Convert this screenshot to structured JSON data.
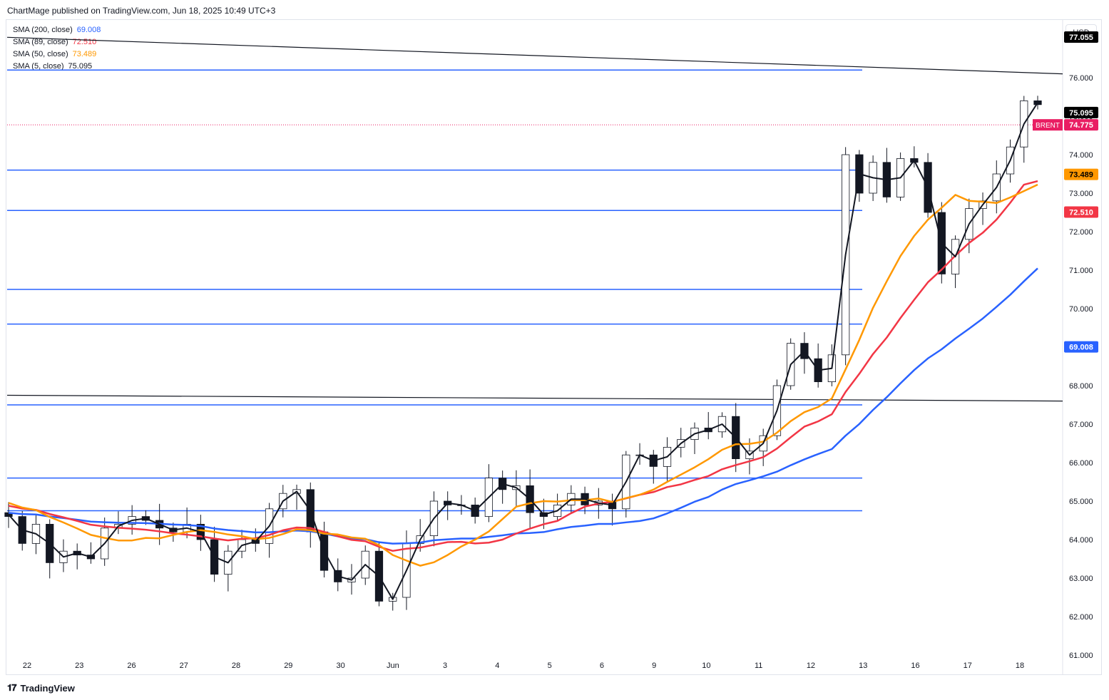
{
  "header": {
    "text": "ChartMage published on TradingView.com, Jun 18, 2025 10:49 UTC+3"
  },
  "currency": "USD",
  "footer": {
    "logo_text": "TradingView"
  },
  "chart_data": {
    "type": "candlestick",
    "symbol": "BRENT",
    "ylim": [
      60.5,
      77.5
    ],
    "y_ticks": [
      "61.000",
      "62.000",
      "63.000",
      "64.000",
      "65.000",
      "66.000",
      "67.000",
      "68.000",
      "69.000",
      "70.000",
      "71.000",
      "72.000",
      "73.000",
      "74.000",
      "75.000",
      "76.000"
    ],
    "x_ticks": [
      "22",
      "23",
      "26",
      "27",
      "28",
      "29",
      "30",
      "Jun",
      "3",
      "4",
      "5",
      "6",
      "9",
      "10",
      "11",
      "12",
      "13",
      "16",
      "17",
      "18"
    ],
    "legend": [
      {
        "label": "SMA (200, close)",
        "value": "69.008",
        "color": "#2962ff"
      },
      {
        "label": "SMA (89, close)",
        "value": "72.510",
        "color": "#f23645"
      },
      {
        "label": "SMA (50, close)",
        "value": "73.489",
        "color": "#ff9800"
      },
      {
        "label": "SMA (5, close)",
        "value": "75.095",
        "color": "#131722"
      }
    ],
    "price_labels": [
      {
        "text": "77.055",
        "value": 77.055,
        "bg": "#000000",
        "fg": "#ffffff"
      },
      {
        "text": "75.095",
        "value": 75.095,
        "bg": "#000000",
        "fg": "#ffffff"
      },
      {
        "text": "74.775",
        "value": 74.775,
        "bg": "#e91e63",
        "fg": "#ffffff",
        "tag": "BRENT"
      },
      {
        "text": "73.489",
        "value": 73.489,
        "bg": "#ff9800",
        "fg": "#000000"
      },
      {
        "text": "72.510",
        "value": 72.51,
        "bg": "#f23645",
        "fg": "#ffffff"
      },
      {
        "text": "69.008",
        "value": 69.008,
        "bg": "#2962ff",
        "fg": "#ffffff"
      }
    ],
    "last_price": 74.775,
    "horizontal_levels": [
      76.2,
      73.6,
      72.55,
      70.5,
      69.6,
      67.5,
      65.6,
      64.75
    ],
    "trendlines": [
      {
        "from": [
          0,
          77.05
        ],
        "to": [
          1,
          76.1
        ]
      },
      {
        "from": [
          0,
          67.75
        ],
        "to": [
          1,
          67.6
        ]
      }
    ],
    "close_path": [
      64.6,
      63.9,
      64.4,
      63.4,
      63.7,
      63.6,
      63.5,
      64.3,
      64.4,
      64.6,
      64.5,
      64.3,
      64.2,
      64.4,
      64.0,
      63.1,
      63.7,
      64.0,
      63.9,
      64.8,
      65.2,
      65.3,
      64.2,
      63.2,
      62.9,
      63.0,
      63.7,
      62.4,
      62.5,
      63.9,
      64.1,
      65.0,
      64.9,
      64.9,
      64.6,
      65.6,
      65.3,
      65.4,
      64.7,
      64.6,
      64.9,
      65.2,
      64.9,
      65.0,
      64.8,
      66.2,
      66.2,
      65.9,
      66.4,
      66.6,
      66.9,
      66.8,
      67.2,
      66.1,
      66.3,
      66.7,
      68.0,
      69.1,
      68.7,
      68.1,
      68.8,
      74.0,
      73.0,
      73.8,
      72.9,
      73.9,
      73.8,
      72.5,
      70.9,
      71.8,
      72.6,
      72.8,
      73.5,
      74.2,
      75.4,
      75.3
    ]
  }
}
